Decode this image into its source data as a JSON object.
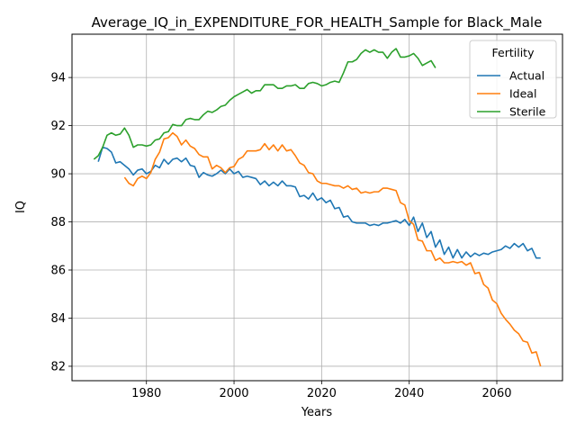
{
  "chart_data": {
    "type": "line",
    "title": "Average_IQ_in_EXPENDITURE_FOR_HEALTH_Sample for Black_Male",
    "xlabel": "Years",
    "ylabel": "IQ",
    "xlim": [
      1963,
      2075
    ],
    "ylim": [
      81.4,
      95.8
    ],
    "x_ticks": [
      1980,
      2000,
      2020,
      2040,
      2060
    ],
    "y_ticks": [
      82,
      84,
      86,
      88,
      90,
      92,
      94
    ],
    "grid": true,
    "legend": {
      "title": "Fertility",
      "placement": "top-right"
    },
    "series": [
      {
        "name": "Actual",
        "color": "#1f77b4",
        "x": [
          1969,
          1970,
          1971,
          1972,
          1973,
          1974,
          1975,
          1976,
          1977,
          1978,
          1979,
          1980,
          1981,
          1982,
          1983,
          1984,
          1985,
          1986,
          1987,
          1988,
          1989,
          1990,
          1991,
          1992,
          1993,
          1994,
          1995,
          1996,
          1997,
          1998,
          1999,
          2000,
          2001,
          2002,
          2003,
          2004,
          2005,
          2006,
          2007,
          2008,
          2009,
          2010,
          2011,
          2012,
          2013,
          2014,
          2015,
          2016,
          2017,
          2018,
          2019,
          2020,
          2021,
          2022,
          2023,
          2024,
          2025,
          2026,
          2027,
          2028,
          2029,
          2030,
          2031,
          2032,
          2033,
          2034,
          2035,
          2036,
          2037,
          2038,
          2039,
          2040,
          2041,
          2042,
          2043,
          2044,
          2045,
          2046,
          2047,
          2048,
          2049,
          2050,
          2051,
          2052,
          2053,
          2054,
          2055,
          2056,
          2057,
          2058,
          2059,
          2060,
          2061,
          2062,
          2063,
          2064,
          2065,
          2066,
          2067,
          2068,
          2069,
          2070
        ],
        "values": [
          90.5,
          91.1,
          91.05,
          90.9,
          90.45,
          90.5,
          90.35,
          90.2,
          89.95,
          90.15,
          90.2,
          90.0,
          90.1,
          90.35,
          90.25,
          90.6,
          90.4,
          90.6,
          90.65,
          90.5,
          90.65,
          90.35,
          90.3,
          89.85,
          90.05,
          89.95,
          89.9,
          90.0,
          90.15,
          90.0,
          90.2,
          90.0,
          90.1,
          89.85,
          89.9,
          89.85,
          89.8,
          89.55,
          89.7,
          89.5,
          89.65,
          89.5,
          89.7,
          89.5,
          89.5,
          89.45,
          89.05,
          89.1,
          88.95,
          89.2,
          88.9,
          89.0,
          88.8,
          88.9,
          88.55,
          88.6,
          88.2,
          88.25,
          88.0,
          87.95,
          87.95,
          87.95,
          87.85,
          87.9,
          87.85,
          87.95,
          87.95,
          88.0,
          88.05,
          87.95,
          88.1,
          87.85,
          88.2,
          87.6,
          87.95,
          87.35,
          87.6,
          86.95,
          87.25,
          86.65,
          86.95,
          86.5,
          86.85,
          86.5,
          86.75,
          86.55,
          86.7,
          86.6,
          86.7,
          86.65,
          86.75,
          86.8,
          86.85,
          87.0,
          86.9,
          87.1,
          86.95,
          87.1,
          86.8,
          86.9,
          86.5,
          86.5
        ]
      },
      {
        "name": "Ideal",
        "color": "#ff7f0e",
        "x": [
          1975,
          1976,
          1977,
          1978,
          1979,
          1980,
          1981,
          1982,
          1983,
          1984,
          1985,
          1986,
          1987,
          1988,
          1989,
          1990,
          1991,
          1992,
          1993,
          1994,
          1995,
          1996,
          1997,
          1998,
          1999,
          2000,
          2001,
          2002,
          2003,
          2004,
          2005,
          2006,
          2007,
          2008,
          2009,
          2010,
          2011,
          2012,
          2013,
          2014,
          2015,
          2016,
          2017,
          2018,
          2019,
          2020,
          2021,
          2022,
          2023,
          2024,
          2025,
          2026,
          2027,
          2028,
          2029,
          2030,
          2031,
          2032,
          2033,
          2034,
          2035,
          2036,
          2037,
          2038,
          2039,
          2040,
          2041,
          2042,
          2043,
          2044,
          2045,
          2046,
          2047,
          2048,
          2049,
          2050,
          2051,
          2052,
          2053,
          2054,
          2055,
          2056,
          2057,
          2058,
          2059,
          2060,
          2061,
          2062,
          2063,
          2064,
          2065,
          2066,
          2067,
          2068,
          2069,
          2070
        ],
        "values": [
          89.85,
          89.6,
          89.5,
          89.8,
          89.9,
          89.8,
          90.05,
          90.6,
          90.9,
          91.45,
          91.5,
          91.7,
          91.55,
          91.2,
          91.4,
          91.15,
          91.05,
          90.8,
          90.7,
          90.7,
          90.2,
          90.35,
          90.25,
          90.05,
          90.25,
          90.3,
          90.6,
          90.7,
          90.95,
          90.95,
          90.95,
          91.0,
          91.25,
          91.0,
          91.2,
          90.95,
          91.2,
          90.95,
          91.0,
          90.75,
          90.45,
          90.35,
          90.05,
          90.0,
          89.7,
          89.6,
          89.6,
          89.55,
          89.5,
          89.5,
          89.4,
          89.5,
          89.35,
          89.4,
          89.2,
          89.25,
          89.2,
          89.25,
          89.25,
          89.4,
          89.4,
          89.35,
          89.3,
          88.8,
          88.7,
          88.05,
          87.9,
          87.25,
          87.2,
          86.8,
          86.8,
          86.4,
          86.5,
          86.3,
          86.3,
          86.35,
          86.3,
          86.35,
          86.2,
          86.3,
          85.85,
          85.9,
          85.4,
          85.25,
          84.75,
          84.6,
          84.2,
          83.95,
          83.75,
          83.5,
          83.35,
          83.05,
          83.0,
          82.55,
          82.6,
          82.0
        ]
      },
      {
        "name": "Sterile",
        "color": "#2ca02c",
        "x": [
          1968,
          1969,
          1970,
          1971,
          1972,
          1973,
          1974,
          1975,
          1976,
          1977,
          1978,
          1979,
          1980,
          1981,
          1982,
          1983,
          1984,
          1985,
          1986,
          1987,
          1988,
          1989,
          1990,
          1991,
          1992,
          1993,
          1994,
          1995,
          1996,
          1997,
          1998,
          1999,
          2000,
          2001,
          2002,
          2003,
          2004,
          2005,
          2006,
          2007,
          2008,
          2009,
          2010,
          2011,
          2012,
          2013,
          2014,
          2015,
          2016,
          2017,
          2018,
          2019,
          2020,
          2021,
          2022,
          2023,
          2024,
          2025,
          2026,
          2027,
          2028,
          2029,
          2030,
          2031,
          2032,
          2033,
          2034,
          2035,
          2036,
          2037,
          2038,
          2039,
          2040,
          2041,
          2042,
          2043,
          2044,
          2045,
          2046
        ],
        "values": [
          90.6,
          90.75,
          91.1,
          91.6,
          91.7,
          91.6,
          91.65,
          91.9,
          91.6,
          91.1,
          91.2,
          91.2,
          91.15,
          91.2,
          91.4,
          91.45,
          91.7,
          91.75,
          92.05,
          92.0,
          92.0,
          92.25,
          92.3,
          92.25,
          92.25,
          92.45,
          92.6,
          92.55,
          92.65,
          92.8,
          92.85,
          93.05,
          93.2,
          93.3,
          93.4,
          93.5,
          93.35,
          93.45,
          93.45,
          93.7,
          93.7,
          93.7,
          93.55,
          93.55,
          93.65,
          93.65,
          93.7,
          93.55,
          93.55,
          93.75,
          93.8,
          93.75,
          93.65,
          93.7,
          93.8,
          93.85,
          93.8,
          94.2,
          94.65,
          94.65,
          94.75,
          95.0,
          95.15,
          95.05,
          95.15,
          95.05,
          95.05,
          94.8,
          95.05,
          95.2,
          94.85,
          94.85,
          94.9,
          95.0,
          94.8,
          94.5,
          94.6,
          94.7,
          94.4
        ]
      }
    ]
  }
}
